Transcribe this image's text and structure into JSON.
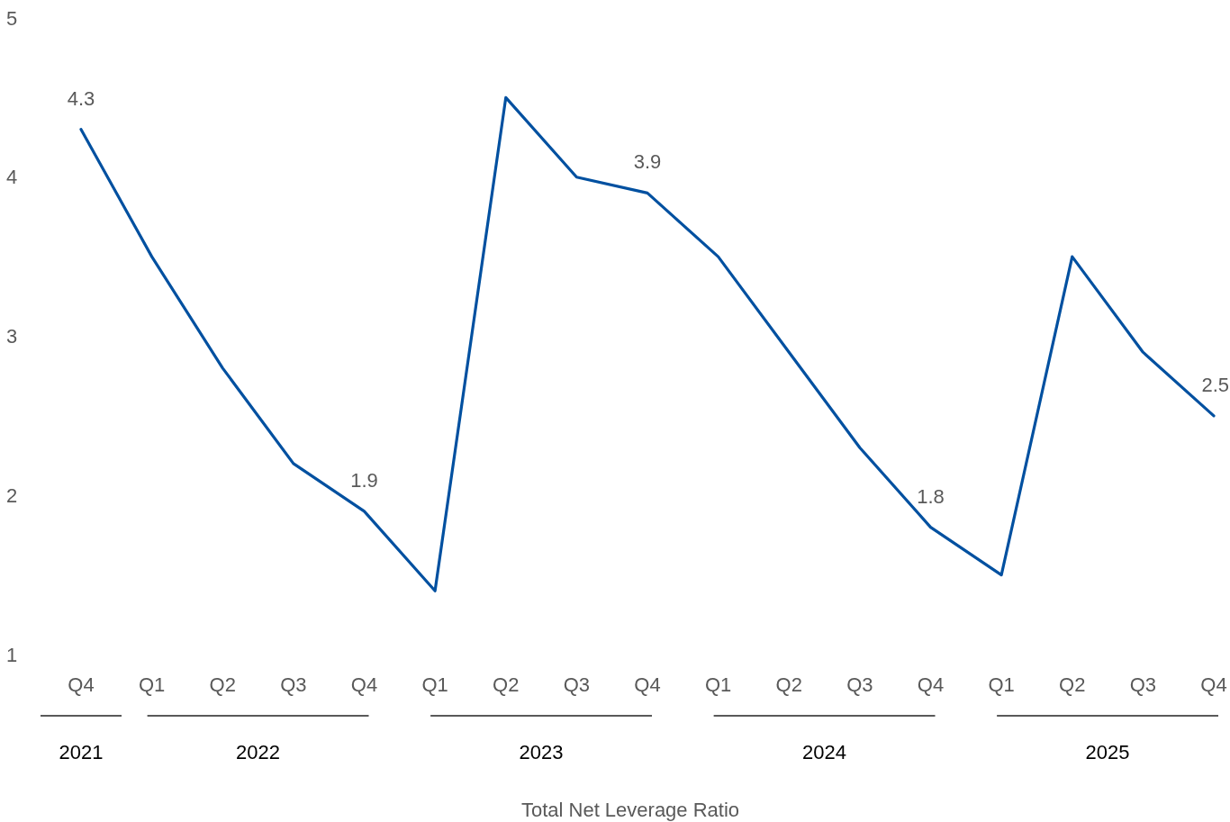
{
  "chart_data": {
    "type": "line",
    "categories": [
      "Q4",
      "Q1",
      "Q2",
      "Q3",
      "Q4",
      "Q1",
      "Q2",
      "Q3",
      "Q4",
      "Q1",
      "Q2",
      "Q3",
      "Q4",
      "Q1",
      "Q2",
      "Q3",
      "Q4"
    ],
    "annotations": [
      "2021",
      "2022",
      "2023",
      "2024",
      "2025",
      "Total Net Leverage Ratio"
    ],
    "series": [
      {
        "color": "#0050a0",
        "values": [
          4.3,
          3.5,
          2.8,
          2.2,
          1.9,
          1.4,
          4.5,
          4.0,
          3.9,
          3.5,
          2.9,
          2.3,
          1.8,
          1.5,
          3.5,
          2.9,
          2.5
        ],
        "value_labels": [
          "4.3",
          null,
          null,
          null,
          "1.9",
          null,
          null,
          null,
          "3.9",
          null,
          null,
          null,
          "1.8",
          null,
          null,
          null,
          "2.5"
        ]
      }
    ],
    "ylim": [
      1,
      5
    ],
    "yticks": [
      1,
      2,
      3,
      4,
      5
    ],
    "grid": false,
    "marker": "none",
    "line_style": "solid"
  }
}
